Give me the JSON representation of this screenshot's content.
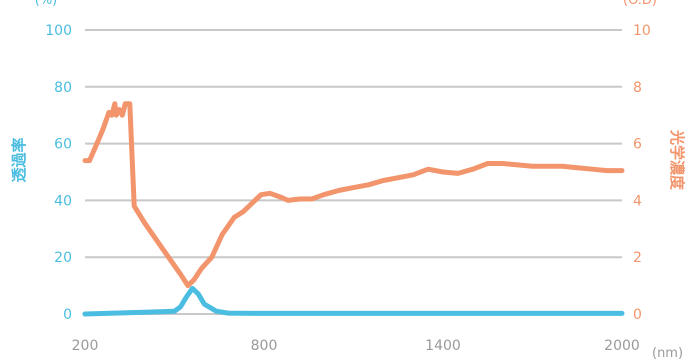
{
  "chart_data": {
    "type": "line",
    "xlabel_unit": "(nm)",
    "y_left": {
      "label": "透過率",
      "unit": "(%)",
      "range": [
        0,
        100
      ],
      "ticks": [
        "0",
        "20",
        "40",
        "60",
        "80",
        "100"
      ],
      "color": "#4bbde0"
    },
    "y_right": {
      "label": "光学濃度",
      "unit": "(O.D)",
      "range": [
        0,
        10
      ],
      "ticks": [
        "0",
        "2",
        "4",
        "6",
        "8",
        "10"
      ],
      "color": "#f2956c"
    },
    "x_axis": {
      "range": [
        200,
        2000
      ],
      "ticks": [
        {
          "value": 200,
          "label": "200"
        },
        {
          "value": 800,
          "label": "800"
        },
        {
          "value": 1400,
          "label": "1400"
        },
        {
          "value": 2000,
          "label": "2000"
        }
      ]
    },
    "grid": true,
    "series": [
      {
        "key": "transmittance",
        "axis": "left",
        "color": "#4bbde0",
        "points": [
          [
            200,
            0
          ],
          [
            300,
            0.3
          ],
          [
            400,
            0.6
          ],
          [
            500,
            1.0
          ],
          [
            520,
            2.5
          ],
          [
            540,
            6.0
          ],
          [
            560,
            9.0
          ],
          [
            580,
            7.0
          ],
          [
            600,
            3.5
          ],
          [
            640,
            1.0
          ],
          [
            680,
            0.3
          ],
          [
            800,
            0.2
          ],
          [
            1000,
            0.2
          ],
          [
            1400,
            0.2
          ],
          [
            2000,
            0.2
          ]
        ]
      },
      {
        "key": "optical_density",
        "axis": "right",
        "color": "#f2956c",
        "points": [
          [
            200,
            5.4
          ],
          [
            215,
            5.4
          ],
          [
            240,
            6.0
          ],
          [
            260,
            6.5
          ],
          [
            280,
            7.1
          ],
          [
            290,
            7.0
          ],
          [
            300,
            7.4
          ],
          [
            305,
            7.0
          ],
          [
            315,
            7.2
          ],
          [
            325,
            7.0
          ],
          [
            335,
            7.4
          ],
          [
            350,
            7.4
          ],
          [
            365,
            3.8
          ],
          [
            400,
            3.2
          ],
          [
            440,
            2.6
          ],
          [
            480,
            2.0
          ],
          [
            520,
            1.4
          ],
          [
            545,
            1.0
          ],
          [
            565,
            1.2
          ],
          [
            590,
            1.6
          ],
          [
            625,
            2.0
          ],
          [
            660,
            2.8
          ],
          [
            700,
            3.4
          ],
          [
            730,
            3.6
          ],
          [
            760,
            3.9
          ],
          [
            790,
            4.2
          ],
          [
            820,
            4.25
          ],
          [
            860,
            4.1
          ],
          [
            880,
            4.0
          ],
          [
            920,
            4.05
          ],
          [
            960,
            4.05
          ],
          [
            1000,
            4.2
          ],
          [
            1050,
            4.35
          ],
          [
            1100,
            4.45
          ],
          [
            1150,
            4.55
          ],
          [
            1200,
            4.7
          ],
          [
            1250,
            4.8
          ],
          [
            1300,
            4.9
          ],
          [
            1350,
            5.1
          ],
          [
            1400,
            5.0
          ],
          [
            1450,
            4.95
          ],
          [
            1500,
            5.1
          ],
          [
            1550,
            5.3
          ],
          [
            1600,
            5.3
          ],
          [
            1650,
            5.25
          ],
          [
            1700,
            5.2
          ],
          [
            1750,
            5.2
          ],
          [
            1800,
            5.2
          ],
          [
            1850,
            5.15
          ],
          [
            1900,
            5.1
          ],
          [
            1950,
            5.05
          ],
          [
            2000,
            5.05
          ]
        ]
      }
    ]
  }
}
